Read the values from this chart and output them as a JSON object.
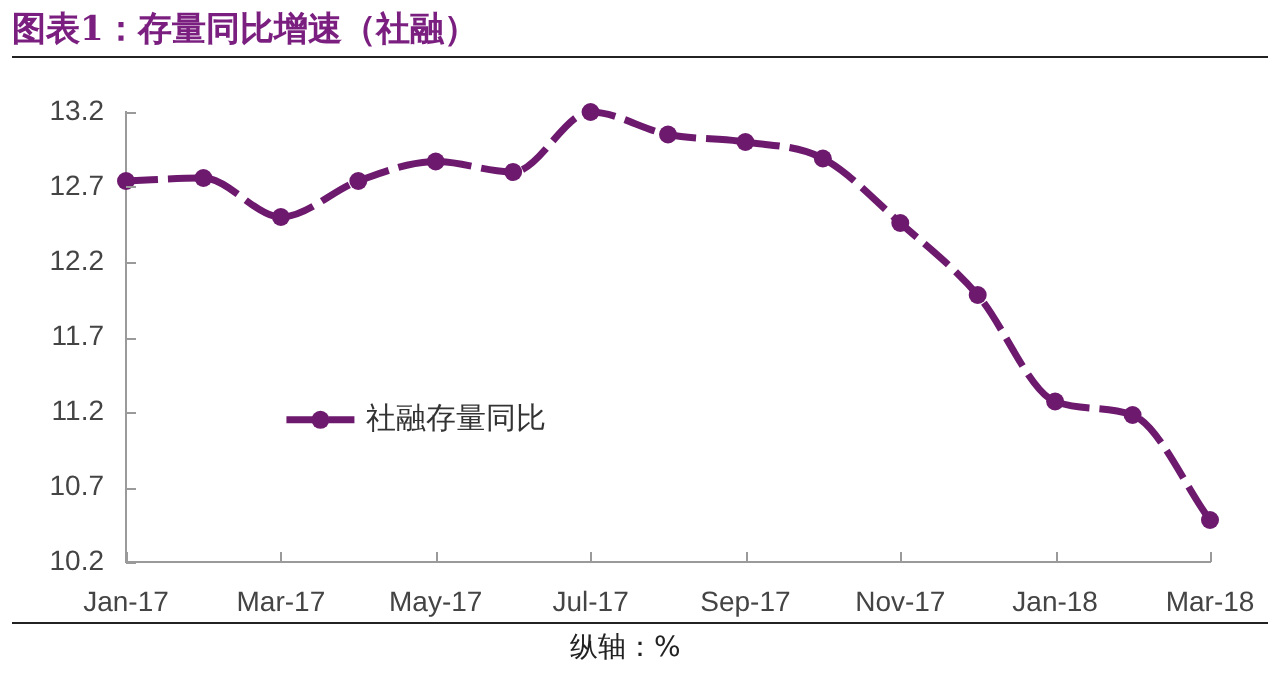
{
  "chart_data": {
    "type": "line",
    "title": "图表1：存量同比增速（社融）",
    "annotations": [
      "纵轴：%"
    ],
    "categories": [
      "Jan-17",
      null,
      "Mar-17",
      null,
      "May-17",
      null,
      "Jul-17",
      null,
      "Sep-17",
      null,
      "Nov-17",
      null,
      "Jan-18",
      null,
      "Mar-18"
    ],
    "series": [
      {
        "name": "社融存量同比",
        "color": "#6d1a6e",
        "values": [
          12.74,
          12.76,
          12.5,
          12.74,
          12.87,
          12.8,
          13.2,
          13.05,
          13.0,
          12.89,
          12.46,
          11.98,
          11.27,
          11.18,
          10.48
        ]
      }
    ],
    "ylim": [
      10.2,
      13.2
    ],
    "yticks": [
      10.2,
      10.7,
      11.2,
      11.7,
      12.2,
      12.7,
      13.2
    ],
    "grid": false,
    "legend": "left",
    "marker": "circle",
    "line_style": "dashed"
  }
}
